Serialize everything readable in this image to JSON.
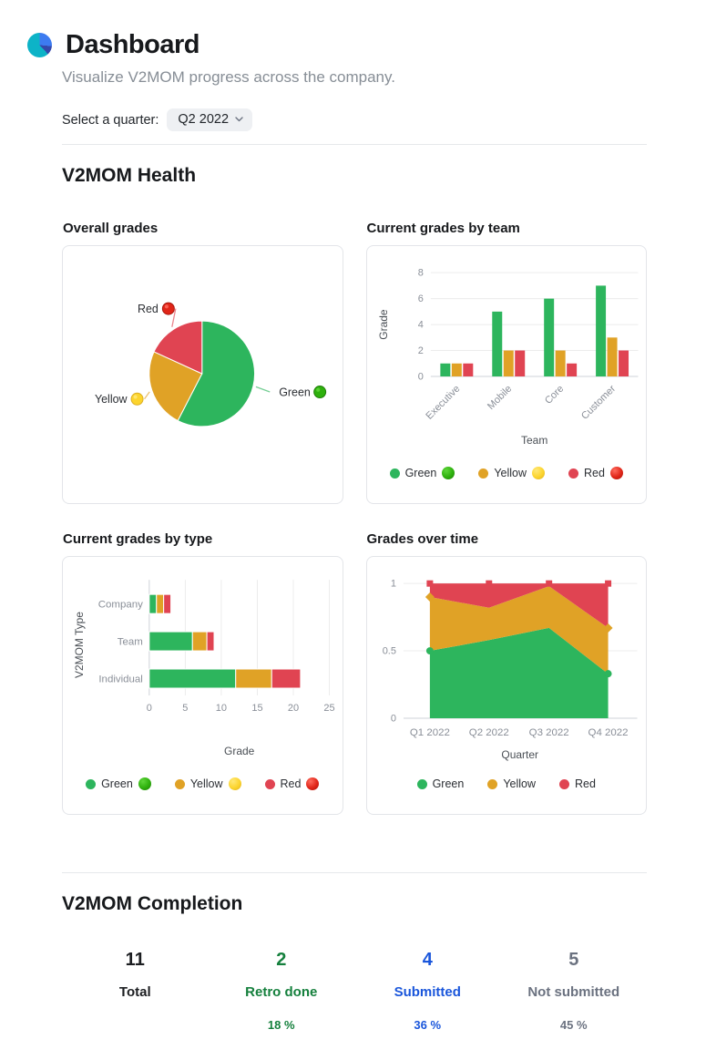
{
  "header": {
    "title": "Dashboard",
    "subtitle": "Visualize V2MOM progress across the company.",
    "logo_colors": {
      "blue": "#3d7bf0",
      "dark_blue": "#3448ab",
      "teal": "#0db3c7"
    }
  },
  "quarter_selector": {
    "label": "Select a quarter:",
    "value": "Q2 2022"
  },
  "sections": {
    "health": "V2MOM Health",
    "completion": "V2MOM Completion"
  },
  "status_colors": {
    "green": "#2db55d",
    "yellow": "#e0a226",
    "red": "#e04452"
  },
  "emoji_colors": {
    "green": {
      "light": "#5ed63a",
      "base": "#2eb00d",
      "edge": "#1f7d08"
    },
    "yellow": {
      "light": "#ffe878",
      "base": "#fcd42d",
      "edge": "#dcae22"
    },
    "red": {
      "light": "#ff6b5e",
      "base": "#e02518",
      "edge": "#a8170d"
    }
  },
  "chart_data": [
    {
      "id": "overall-grades",
      "type": "pie",
      "title": "Overall grades",
      "labels": [
        "Green",
        "Yellow",
        "Red"
      ],
      "values": [
        19,
        8,
        6
      ],
      "colors": [
        "#2db55d",
        "#e0a226",
        "#e04452"
      ],
      "label_emojis": [
        "green",
        "yellow",
        "red"
      ],
      "legend_position": "callout-labels"
    },
    {
      "id": "grades-by-team",
      "type": "bar",
      "title": "Current grades by team",
      "categories": [
        "Executive",
        "Mobile",
        "Core",
        "Customer"
      ],
      "series": [
        {
          "name": "Green",
          "color": "#2db55d",
          "emoji": "green",
          "values": [
            1,
            5,
            6,
            7
          ]
        },
        {
          "name": "Yellow",
          "color": "#e0a226",
          "emoji": "yellow",
          "values": [
            1,
            2,
            2,
            3
          ]
        },
        {
          "name": "Red",
          "color": "#e04452",
          "emoji": "red",
          "values": [
            1,
            2,
            1,
            2
          ]
        }
      ],
      "xlabel": "Team",
      "ylabel": "Grade",
      "ylim": [
        0,
        8
      ],
      "yticks": [
        0,
        2,
        4,
        6,
        8
      ],
      "grid": true,
      "legend_position": "bottom",
      "legend_emoji": true
    },
    {
      "id": "grades-by-type",
      "type": "stacked-bar-horizontal",
      "title": "Current grades by type",
      "categories": [
        "Company",
        "Team",
        "Individual"
      ],
      "series": [
        {
          "name": "Green",
          "color": "#2db55d",
          "emoji": "green",
          "values": [
            1,
            6,
            12
          ]
        },
        {
          "name": "Yellow",
          "color": "#e0a226",
          "emoji": "yellow",
          "values": [
            1,
            2,
            5
          ]
        },
        {
          "name": "Red",
          "color": "#e04452",
          "emoji": "red",
          "values": [
            1,
            1,
            4
          ]
        }
      ],
      "xlabel": "Grade",
      "ylabel": "V2MOM Type",
      "xlim": [
        0,
        25
      ],
      "xticks": [
        0,
        5,
        10,
        15,
        20,
        25
      ],
      "grid": true,
      "legend_position": "bottom",
      "legend_emoji": true
    },
    {
      "id": "grades-over-time",
      "type": "area",
      "title": "Grades over time",
      "x": [
        "Q1 2022",
        "Q2 2022",
        "Q3 2022",
        "Q4 2022"
      ],
      "series": [
        {
          "name": "Green",
          "color": "#2db55d",
          "marker": "circle",
          "values": [
            0.5,
            0.58,
            0.67,
            0.33
          ]
        },
        {
          "name": "Yellow",
          "color": "#e0a226",
          "marker": "diamond",
          "values": [
            0.4,
            0.24,
            0.31,
            0.34
          ]
        },
        {
          "name": "Red",
          "color": "#e04452",
          "marker": "square",
          "values": [
            0.1,
            0.18,
            0.02,
            0.33
          ]
        }
      ],
      "normalized": true,
      "xlabel": "Quarter",
      "ylim": [
        0,
        1
      ],
      "yticks": [
        0,
        0.5,
        1
      ],
      "grid": true,
      "legend_position": "bottom",
      "legend_emoji": false
    }
  ],
  "completion_stats": [
    {
      "value": "11",
      "label": "Total",
      "percent": "",
      "color": "#1c1e21"
    },
    {
      "value": "2",
      "label": "Retro done",
      "percent": "18 %",
      "color": "#15803d"
    },
    {
      "value": "4",
      "label": "Submitted",
      "percent": "36 %",
      "color": "#1a56db"
    },
    {
      "value": "5",
      "label": "Not submitted",
      "percent": "45 %",
      "color": "#6b7280"
    }
  ]
}
